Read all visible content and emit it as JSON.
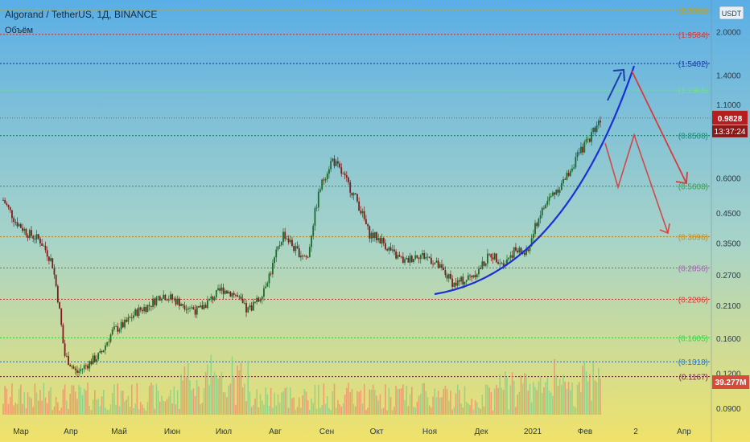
{
  "header": {
    "symbol_line": "Algorand / TetherUS, 1Д, BINANCE",
    "indicator": "Объём",
    "currency_badge": "USDT"
  },
  "colors": {
    "bg_top": "#5aaee6",
    "bg_mid": "#a8d4c8",
    "bg_bottom": "#f0e26a",
    "candle_up": "#1e6b2e",
    "candle_down": "#7a1e1e",
    "volume_up": "#7fcf8a",
    "volume_down": "#f08a6a",
    "curve": "#1a2fd6",
    "arrow_blue": "#1a3fa8",
    "arrow_red": "#d93a3a",
    "price_badge": "#b81d1d",
    "volume_badge": "#d84a3a"
  },
  "chart_data": {
    "type": "candlestick",
    "yscale": "log",
    "ylim": [
      0.083,
      2.6
    ],
    "xlabels": [
      "Мар",
      "Апр",
      "Май",
      "Июн",
      "Июл",
      "Авг",
      "Сен",
      "Окт",
      "Ноя",
      "Дек",
      "2021",
      "Фев",
      "2",
      "Апр"
    ],
    "yticks": [
      "2.0000",
      "1.4000",
      "1.1000",
      "0.6000",
      "0.4500",
      "0.3500",
      "0.2700",
      "0.2100",
      "0.1600",
      "0.1200",
      "0.0900"
    ],
    "price_path": [
      0.5,
      0.42,
      0.38,
      0.36,
      0.3,
      0.14,
      0.12,
      0.13,
      0.14,
      0.17,
      0.18,
      0.2,
      0.21,
      0.23,
      0.22,
      0.21,
      0.2,
      0.22,
      0.24,
      0.23,
      0.2,
      0.22,
      0.28,
      0.38,
      0.33,
      0.31,
      0.55,
      0.7,
      0.6,
      0.5,
      0.38,
      0.36,
      0.32,
      0.3,
      0.32,
      0.31,
      0.28,
      0.25,
      0.26,
      0.28,
      0.32,
      0.3,
      0.33,
      0.32,
      0.44,
      0.52,
      0.58,
      0.7,
      0.82,
      0.98
    ],
    "levels": [
      {
        "value": 2.3891,
        "label": "(2.3891)",
        "color": "#b5a22a"
      },
      {
        "value": 1.9584,
        "label": "(1.9584)",
        "color": "#d93a3a"
      },
      {
        "value": 1.5402,
        "label": "(1.5402)",
        "color": "#1a3fa8"
      },
      {
        "value": 1.2365,
        "label": "(1.2365)",
        "color": "#6fe08a"
      },
      {
        "value": 0.8508,
        "label": "(0.8508)",
        "color": "#1a8a73"
      },
      {
        "value": 0.5608,
        "label": "(0.5608)",
        "color": "#3aa04a"
      },
      {
        "value": 0.3696,
        "label": "(0.3696)",
        "color": "#c58a1a"
      },
      {
        "value": 0.2856,
        "label": "(0.2856)",
        "color": "#b05ac0"
      },
      {
        "value": 0.2206,
        "label": "(0.2206)",
        "color": "#d93a3a"
      },
      {
        "value": 0.1605,
        "label": "(0.1605)",
        "color": "#3ad04a"
      },
      {
        "value": 0.1318,
        "label": "(0.1318)",
        "color": "#2a7ac0"
      },
      {
        "value": 0.1167,
        "label": "(0.1167)",
        "color": "#7a2a4a"
      }
    ],
    "last_price": {
      "value": 0.9828,
      "label": "0.9828",
      "countdown": "13:37:24"
    },
    "last_volume": {
      "label": "39.277M"
    }
  }
}
